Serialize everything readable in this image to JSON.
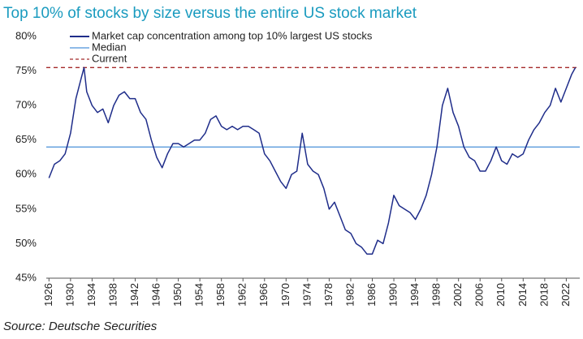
{
  "chart_data": {
    "type": "line",
    "title": "Top 10% of stocks by size versus the entire US stock market",
    "source": "Source: Deutsche Securities",
    "x": [
      1926,
      1927,
      1928,
      1929,
      1930,
      1931,
      1932,
      1932.5,
      1933,
      1934,
      1935,
      1936,
      1937,
      1938,
      1939,
      1940,
      1941,
      1942,
      1943,
      1944,
      1945,
      1946,
      1947,
      1948,
      1949,
      1950,
      1951,
      1952,
      1953,
      1954,
      1955,
      1956,
      1957,
      1958,
      1959,
      1960,
      1961,
      1962,
      1963,
      1964,
      1965,
      1966,
      1967,
      1968,
      1969,
      1970,
      1971,
      1972,
      1973,
      1974,
      1975,
      1976,
      1977,
      1978,
      1979,
      1980,
      1981,
      1982,
      1983,
      1984,
      1985,
      1986,
      1987,
      1988,
      1989,
      1990,
      1991,
      1992,
      1993,
      1994,
      1995,
      1996,
      1997,
      1998,
      1999,
      2000,
      2001,
      2002,
      2003,
      2004,
      2005,
      2006,
      2007,
      2008,
      2009,
      2010,
      2011,
      2012,
      2013,
      2014,
      2015,
      2016,
      2017,
      2018,
      2019,
      2020,
      2021,
      2022,
      2023,
      2023.7
    ],
    "series": [
      {
        "name": "Market cap concentration among top 10% largest US stocks",
        "color": "#1f2d8a",
        "values": [
          59.5,
          61.5,
          62,
          63,
          66,
          71,
          74,
          75.5,
          72,
          70,
          69,
          69.5,
          67.5,
          70,
          71.5,
          72,
          71,
          71,
          69,
          68,
          65,
          62.5,
          61,
          63,
          64.5,
          64.5,
          64,
          64.5,
          65,
          65,
          66,
          68,
          68.5,
          67,
          66.5,
          67,
          66.5,
          67,
          67,
          66.5,
          66,
          63,
          62,
          60.5,
          59,
          58,
          60,
          60.5,
          66,
          61.5,
          60.5,
          60,
          58,
          55,
          56,
          54,
          52,
          51.5,
          50,
          49.5,
          48.5,
          48.5,
          50.5,
          50,
          53,
          57,
          55.5,
          55,
          54.5,
          53.5,
          55,
          57,
          60,
          64,
          70,
          72.5,
          69,
          67,
          64,
          62.5,
          62,
          60.5,
          60.5,
          62,
          64,
          62,
          61.5,
          63,
          62.5,
          63,
          65,
          66.5,
          67.5,
          69,
          70,
          72.5,
          70.5,
          72.5,
          74.5,
          75.5
        ]
      }
    ],
    "reference_lines": [
      {
        "name": "Median",
        "value": 64,
        "color": "#4a90d9",
        "style": "solid"
      },
      {
        "name": "Current",
        "value": 75.5,
        "color": "#a52a2a",
        "style": "dashed"
      }
    ],
    "xlim": [
      1925.5,
      2024.5
    ],
    "xticks": [
      1926,
      1930,
      1934,
      1938,
      1942,
      1946,
      1950,
      1954,
      1958,
      1962,
      1966,
      1970,
      1974,
      1978,
      1982,
      1986,
      1990,
      1994,
      1998,
      2002,
      2006,
      2010,
      2014,
      2018,
      2022
    ],
    "ylim": [
      45,
      80
    ],
    "yticks": [
      {
        "value": 45,
        "label": "45%"
      },
      {
        "value": 50,
        "label": "50%"
      },
      {
        "value": 55,
        "label": "55%"
      },
      {
        "value": 60,
        "label": "60%"
      },
      {
        "value": 65,
        "label": "65%"
      },
      {
        "value": 70,
        "label": "70%"
      },
      {
        "value": 75,
        "label": "75%"
      },
      {
        "value": 80,
        "label": "80%"
      }
    ],
    "title_color": "#1a9bbf"
  }
}
